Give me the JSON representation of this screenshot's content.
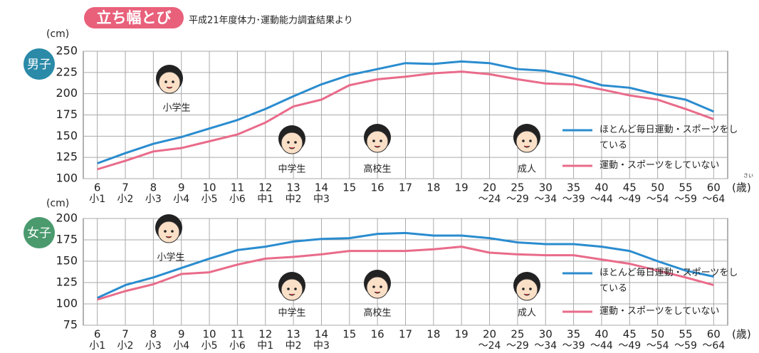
{
  "header": {
    "title": "立ち幅とび",
    "subtitle": "平成21年度体力･運動能力調査結果より"
  },
  "chart_data": [
    {
      "type": "line",
      "label": "男子",
      "y_unit": "(cm)",
      "x_unit": "(歳)",
      "x_unit_ruby": "さい",
      "categories": [
        "6",
        "7",
        "8",
        "9",
        "10",
        "11",
        "12",
        "13",
        "14",
        "15",
        "16",
        "17",
        "18",
        "19",
        "20",
        "25",
        "30",
        "35",
        "40",
        "45",
        "50",
        "55",
        "60"
      ],
      "category_sublabels": [
        "小1",
        "小2",
        "小3",
        "小4",
        "小5",
        "小6",
        "中1",
        "中2",
        "中3",
        null,
        null,
        null,
        null,
        null,
        "〜24",
        "〜29",
        "〜34",
        "〜39",
        "〜44",
        "〜49",
        "〜54",
        "〜59",
        "〜64"
      ],
      "ylim": [
        100,
        250
      ],
      "yticks": [
        100,
        125,
        150,
        175,
        200,
        225,
        250
      ],
      "grid": true,
      "legend": "right",
      "annotations": [
        "小学生",
        "中学生",
        "高校生",
        "成人"
      ],
      "series": [
        {
          "name": "ほとんど毎日運動・スポーツをしている",
          "color": "#2a8ccf",
          "values": [
            118,
            130,
            141,
            149,
            159,
            169,
            182,
            197,
            211,
            222,
            229,
            236,
            235,
            238,
            236,
            229,
            227,
            220,
            210,
            207,
            199,
            193,
            179
          ]
        },
        {
          "name": "運動・スポーツをしていない",
          "color": "#e96b8a",
          "values": [
            111,
            121,
            132,
            136,
            144,
            152,
            166,
            185,
            193,
            210,
            217,
            220,
            224,
            226,
            223,
            217,
            212,
            211,
            205,
            198,
            193,
            182,
            170
          ]
        }
      ]
    },
    {
      "type": "line",
      "label": "女子",
      "y_unit": "(cm)",
      "x_unit": "(歳)",
      "categories": [
        "6",
        "7",
        "8",
        "9",
        "10",
        "11",
        "12",
        "13",
        "14",
        "15",
        "16",
        "17",
        "18",
        "19",
        "20",
        "25",
        "30",
        "35",
        "40",
        "45",
        "50",
        "55",
        "60"
      ],
      "category_sublabels": [
        "小1",
        "小2",
        "小3",
        "小4",
        "小5",
        "小6",
        "中1",
        "中2",
        "中3",
        null,
        null,
        null,
        null,
        null,
        "〜24",
        "〜29",
        "〜34",
        "〜39",
        "〜44",
        "〜49",
        "〜54",
        "〜59",
        "〜64"
      ],
      "ylim": [
        75,
        200
      ],
      "yticks": [
        75,
        100,
        125,
        150,
        175,
        200
      ],
      "grid": true,
      "legend": "right",
      "annotations": [
        "小学生",
        "中学生",
        "高校生",
        "成人"
      ],
      "series": [
        {
          "name": "ほとんど毎日運動・スポーツをしている",
          "color": "#2a8ccf",
          "values": [
            107,
            122,
            131,
            142,
            153,
            163,
            167,
            173,
            176,
            177,
            182,
            183,
            180,
            180,
            177,
            172,
            170,
            170,
            167,
            162,
            150,
            139,
            132
          ]
        },
        {
          "name": "運動・スポーツをしていない",
          "color": "#e96b8a",
          "values": [
            105,
            115,
            123,
            135,
            137,
            146,
            153,
            155,
            158,
            162,
            162,
            162,
            164,
            167,
            160,
            158,
            157,
            157,
            152,
            147,
            139,
            131,
            122
          ]
        }
      ]
    }
  ]
}
